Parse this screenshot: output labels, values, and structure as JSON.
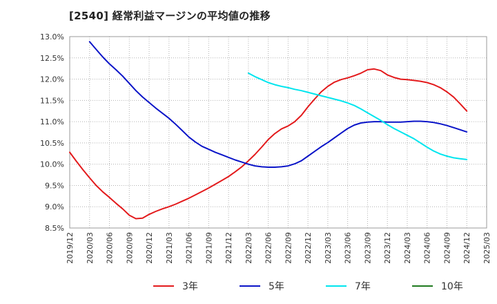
{
  "chart_data": {
    "type": "line",
    "title": "[2540]  経常利益マージンの平均値の推移",
    "xlabel": "",
    "ylabel": "",
    "ylim": [
      8.5,
      13.0
    ],
    "y_ticks": [
      "8.5%",
      "9.0%",
      "9.5%",
      "10.0%",
      "10.5%",
      "11.0%",
      "11.5%",
      "12.0%",
      "12.5%",
      "13.0%"
    ],
    "x_ticks": [
      "2019/12",
      "2020/03",
      "2020/06",
      "2020/09",
      "2020/12",
      "2021/03",
      "2021/06",
      "2021/09",
      "2021/12",
      "2022/03",
      "2022/06",
      "2022/09",
      "2022/12",
      "2023/03",
      "2023/06",
      "2023/09",
      "2023/12",
      "2024/03",
      "2024/06",
      "2024/09",
      "2024/12",
      "2025/03"
    ],
    "grid": true,
    "legend_position": "bottom",
    "series": [
      {
        "name": "3年",
        "color": "#e31a1c",
        "points": [
          [
            "2019/12",
            10.28
          ],
          [
            "2020/01",
            10.07
          ],
          [
            "2020/02",
            9.87
          ],
          [
            "2020/03",
            9.68
          ],
          [
            "2020/04",
            9.5
          ],
          [
            "2020/05",
            9.35
          ],
          [
            "2020/06",
            9.22
          ],
          [
            "2020/07",
            9.08
          ],
          [
            "2020/08",
            8.95
          ],
          [
            "2020/09",
            8.8
          ],
          [
            "2020/10",
            8.72
          ],
          [
            "2020/11",
            8.73
          ],
          [
            "2020/12",
            8.82
          ],
          [
            "2021/01",
            8.89
          ],
          [
            "2021/02",
            8.95
          ],
          [
            "2021/03",
            9.0
          ],
          [
            "2021/04",
            9.06
          ],
          [
            "2021/05",
            9.13
          ],
          [
            "2021/06",
            9.2
          ],
          [
            "2021/07",
            9.28
          ],
          [
            "2021/08",
            9.36
          ],
          [
            "2021/09",
            9.44
          ],
          [
            "2021/10",
            9.53
          ],
          [
            "2021/11",
            9.62
          ],
          [
            "2021/12",
            9.71
          ],
          [
            "2022/01",
            9.82
          ],
          [
            "2022/02",
            9.94
          ],
          [
            "2022/03",
            10.08
          ],
          [
            "2022/04",
            10.23
          ],
          [
            "2022/05",
            10.4
          ],
          [
            "2022/06",
            10.58
          ],
          [
            "2022/07",
            10.72
          ],
          [
            "2022/08",
            10.83
          ],
          [
            "2022/09",
            10.9
          ],
          [
            "2022/10",
            11.0
          ],
          [
            "2022/11",
            11.15
          ],
          [
            "2022/12",
            11.35
          ],
          [
            "2023/01",
            11.53
          ],
          [
            "2023/02",
            11.7
          ],
          [
            "2023/03",
            11.83
          ],
          [
            "2023/04",
            11.93
          ],
          [
            "2023/05",
            11.99
          ],
          [
            "2023/06",
            12.03
          ],
          [
            "2023/07",
            12.08
          ],
          [
            "2023/08",
            12.14
          ],
          [
            "2023/09",
            12.22
          ],
          [
            "2023/10",
            12.24
          ],
          [
            "2023/11",
            12.2
          ],
          [
            "2023/12",
            12.1
          ],
          [
            "2024/01",
            12.04
          ],
          [
            "2024/02",
            12.0
          ],
          [
            "2024/03",
            11.99
          ],
          [
            "2024/04",
            11.97
          ],
          [
            "2024/05",
            11.95
          ],
          [
            "2024/06",
            11.92
          ],
          [
            "2024/07",
            11.87
          ],
          [
            "2024/08",
            11.8
          ],
          [
            "2024/09",
            11.7
          ],
          [
            "2024/10",
            11.58
          ],
          [
            "2024/11",
            11.42
          ],
          [
            "2024/12",
            11.25
          ]
        ]
      },
      {
        "name": "5年",
        "color": "#0a14c8",
        "points": [
          [
            "2020/03",
            12.88
          ],
          [
            "2020/04",
            12.7
          ],
          [
            "2020/05",
            12.52
          ],
          [
            "2020/06",
            12.36
          ],
          [
            "2020/07",
            12.22
          ],
          [
            "2020/08",
            12.07
          ],
          [
            "2020/09",
            11.9
          ],
          [
            "2020/10",
            11.73
          ],
          [
            "2020/11",
            11.58
          ],
          [
            "2020/12",
            11.45
          ],
          [
            "2021/01",
            11.32
          ],
          [
            "2021/02",
            11.2
          ],
          [
            "2021/03",
            11.08
          ],
          [
            "2021/04",
            10.94
          ],
          [
            "2021/05",
            10.79
          ],
          [
            "2021/06",
            10.64
          ],
          [
            "2021/07",
            10.52
          ],
          [
            "2021/08",
            10.42
          ],
          [
            "2021/09",
            10.35
          ],
          [
            "2021/10",
            10.28
          ],
          [
            "2021/11",
            10.22
          ],
          [
            "2021/12",
            10.16
          ],
          [
            "2022/01",
            10.1
          ],
          [
            "2022/02",
            10.05
          ],
          [
            "2022/03",
            10.0
          ],
          [
            "2022/04",
            9.96
          ],
          [
            "2022/05",
            9.94
          ],
          [
            "2022/06",
            9.93
          ],
          [
            "2022/07",
            9.93
          ],
          [
            "2022/08",
            9.94
          ],
          [
            "2022/09",
            9.96
          ],
          [
            "2022/10",
            10.01
          ],
          [
            "2022/11",
            10.08
          ],
          [
            "2022/12",
            10.19
          ],
          [
            "2023/01",
            10.3
          ],
          [
            "2023/02",
            10.41
          ],
          [
            "2023/03",
            10.51
          ],
          [
            "2023/04",
            10.62
          ],
          [
            "2023/05",
            10.73
          ],
          [
            "2023/06",
            10.84
          ],
          [
            "2023/07",
            10.92
          ],
          [
            "2023/08",
            10.97
          ],
          [
            "2023/09",
            10.99
          ],
          [
            "2023/10",
            11.0
          ],
          [
            "2023/11",
            11.0
          ],
          [
            "2023/12",
            10.99
          ],
          [
            "2024/01",
            10.99
          ],
          [
            "2024/02",
            10.99
          ],
          [
            "2024/03",
            11.0
          ],
          [
            "2024/04",
            11.01
          ],
          [
            "2024/05",
            11.01
          ],
          [
            "2024/06",
            11.0
          ],
          [
            "2024/07",
            10.98
          ],
          [
            "2024/08",
            10.95
          ],
          [
            "2024/09",
            10.91
          ],
          [
            "2024/10",
            10.86
          ],
          [
            "2024/11",
            10.81
          ],
          [
            "2024/12",
            10.76
          ]
        ]
      },
      {
        "name": "7年",
        "color": "#00e5ee",
        "points": [
          [
            "2022/03",
            12.14
          ],
          [
            "2022/04",
            12.06
          ],
          [
            "2022/05",
            11.99
          ],
          [
            "2022/06",
            11.92
          ],
          [
            "2022/07",
            11.87
          ],
          [
            "2022/08",
            11.83
          ],
          [
            "2022/09",
            11.8
          ],
          [
            "2022/10",
            11.76
          ],
          [
            "2022/11",
            11.73
          ],
          [
            "2022/12",
            11.69
          ],
          [
            "2023/01",
            11.65
          ],
          [
            "2023/02",
            11.61
          ],
          [
            "2023/03",
            11.57
          ],
          [
            "2023/04",
            11.53
          ],
          [
            "2023/05",
            11.49
          ],
          [
            "2023/06",
            11.44
          ],
          [
            "2023/07",
            11.38
          ],
          [
            "2023/08",
            11.3
          ],
          [
            "2023/09",
            11.21
          ],
          [
            "2023/10",
            11.12
          ],
          [
            "2023/11",
            11.03
          ],
          [
            "2023/12",
            10.93
          ],
          [
            "2024/01",
            10.84
          ],
          [
            "2024/02",
            10.76
          ],
          [
            "2024/03",
            10.68
          ],
          [
            "2024/04",
            10.6
          ],
          [
            "2024/05",
            10.5
          ],
          [
            "2024/06",
            10.4
          ],
          [
            "2024/07",
            10.31
          ],
          [
            "2024/08",
            10.24
          ],
          [
            "2024/09",
            10.19
          ],
          [
            "2024/10",
            10.15
          ],
          [
            "2024/11",
            10.13
          ],
          [
            "2024/12",
            10.11
          ]
        ]
      },
      {
        "name": "10年",
        "color": "#1f7a1f",
        "points": []
      }
    ]
  }
}
